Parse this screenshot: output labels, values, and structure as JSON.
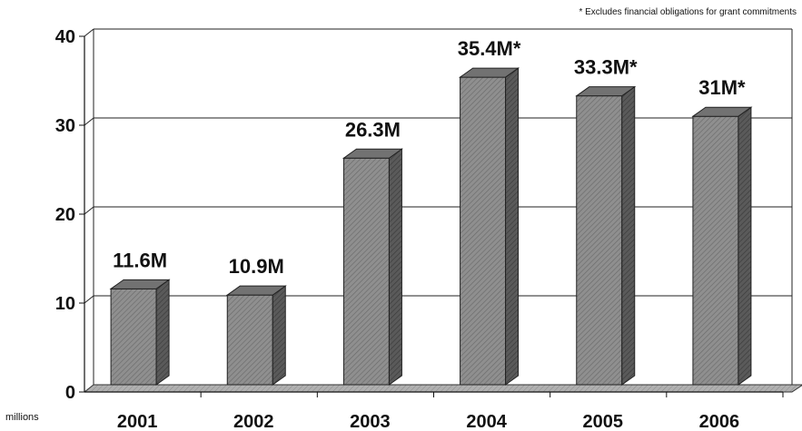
{
  "chart_data": {
    "type": "bar",
    "categories": [
      "2001",
      "2002",
      "2003",
      "2004",
      "2005",
      "2006"
    ],
    "values": [
      11.6,
      10.9,
      26.3,
      35.4,
      33.3,
      31
    ],
    "data_labels": [
      "11.6M",
      "10.9M",
      "26.3M",
      "35.4M*",
      "33.3M*",
      "31M*"
    ],
    "y_ticks": [
      "0",
      "10",
      "20",
      "30",
      "40"
    ],
    "ylim": [
      0,
      40
    ],
    "grid": true,
    "three_d": true,
    "ylabel": "millions",
    "footnote": "* Excludes financial obligations for grant commitments",
    "colors": {
      "bar_front": "#8f8f8f",
      "bar_side": "#5a5a5a",
      "bar_top": "#727272",
      "floor": "#a6a6a6",
      "grid": "#222222"
    }
  }
}
